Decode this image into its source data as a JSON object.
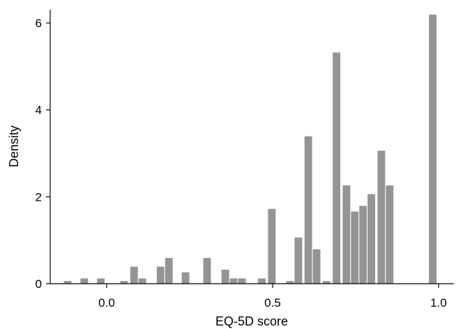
{
  "chart_data": {
    "type": "bar",
    "xlabel": "EQ-5D score",
    "ylabel": "Density",
    "xlim": [
      -0.15,
      1.04
    ],
    "ylim": [
      0,
      6.35
    ],
    "x_ticks": [
      "0.0",
      "0.5",
      "1.0"
    ],
    "x_tick_values": [
      0.0,
      0.5,
      1.0
    ],
    "y_ticks": [
      "0",
      "2",
      "4",
      "6"
    ],
    "y_tick_values": [
      0,
      2,
      4,
      6
    ],
    "grid": false,
    "legend": "none",
    "bar_color": "#949494",
    "bin_width": 0.025,
    "bins": [
      {
        "x0": -0.13,
        "value": 0.07
      },
      {
        "x0": -0.08,
        "value": 0.13
      },
      {
        "x0": -0.03,
        "value": 0.13
      },
      {
        "x0": 0.04,
        "value": 0.07
      },
      {
        "x0": 0.07,
        "value": 0.4
      },
      {
        "x0": 0.095,
        "value": 0.13
      },
      {
        "x0": 0.15,
        "value": 0.4
      },
      {
        "x0": 0.175,
        "value": 0.6
      },
      {
        "x0": 0.225,
        "value": 0.27
      },
      {
        "x0": 0.29,
        "value": 0.6
      },
      {
        "x0": 0.345,
        "value": 0.33
      },
      {
        "x0": 0.37,
        "value": 0.13
      },
      {
        "x0": 0.395,
        "value": 0.13
      },
      {
        "x0": 0.455,
        "value": 0.13
      },
      {
        "x0": 0.485,
        "value": 1.73
      },
      {
        "x0": 0.54,
        "value": 0.07
      },
      {
        "x0": 0.565,
        "value": 1.07
      },
      {
        "x0": 0.595,
        "value": 3.4
      },
      {
        "x0": 0.62,
        "value": 0.8
      },
      {
        "x0": 0.65,
        "value": 0.07
      },
      {
        "x0": 0.68,
        "value": 5.33
      },
      {
        "x0": 0.71,
        "value": 2.27
      },
      {
        "x0": 0.735,
        "value": 1.67
      },
      {
        "x0": 0.76,
        "value": 1.8
      },
      {
        "x0": 0.785,
        "value": 2.07
      },
      {
        "x0": 0.815,
        "value": 3.07
      },
      {
        "x0": 0.84,
        "value": 2.27
      },
      {
        "x0": 0.97,
        "value": 6.2
      }
    ]
  }
}
